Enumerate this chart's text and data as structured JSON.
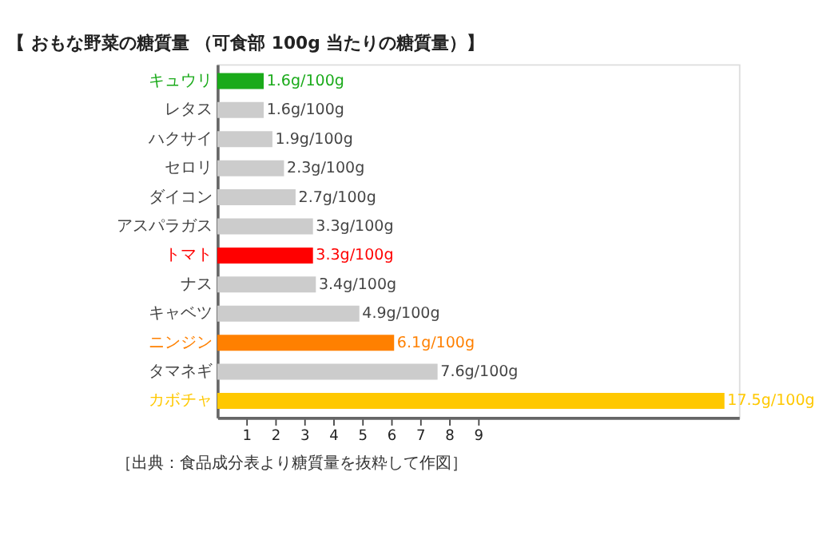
{
  "chart_data": {
    "type": "bar",
    "orientation": "horizontal",
    "title": "【 おもな野菜の糖質量 （可食部 100g 当たりの糖質量）】",
    "categories": [
      "キュウリ",
      "レタス",
      "ハクサイ",
      "セロリ",
      "ダイコン",
      "アスパラガス",
      "トマト",
      "ナス",
      "キャベツ",
      "ニンジン",
      "タマネギ",
      "カボチャ"
    ],
    "values": [
      1.6,
      1.6,
      1.9,
      2.3,
      2.7,
      3.3,
      3.3,
      3.4,
      4.9,
      6.1,
      7.6,
      17.5
    ],
    "colors": [
      "#1aaa1a",
      "#cccccc",
      "#cccccc",
      "#cccccc",
      "#cccccc",
      "#cccccc",
      "#ff0000",
      "#cccccc",
      "#cccccc",
      "#ff8000",
      "#cccccc",
      "#ffc800"
    ],
    "value_labels": [
      "1.6g/100g",
      "1.6g/100g",
      "1.9g/100g",
      "2.3g/100g",
      "2.7g/100g",
      "3.3g/100g",
      "3.3g/100g",
      "3.4g/100g",
      "4.9g/100g",
      "6.1g/100g",
      "7.6g/100g",
      "17.5g/100g"
    ],
    "xlim": [
      0,
      18
    ],
    "xticks": [
      1,
      2,
      3,
      4,
      5,
      6,
      7,
      8,
      9
    ],
    "grid": false,
    "annotations": [
      "［出典：食品成分表より糖質量を抜粋して作図］"
    ]
  }
}
